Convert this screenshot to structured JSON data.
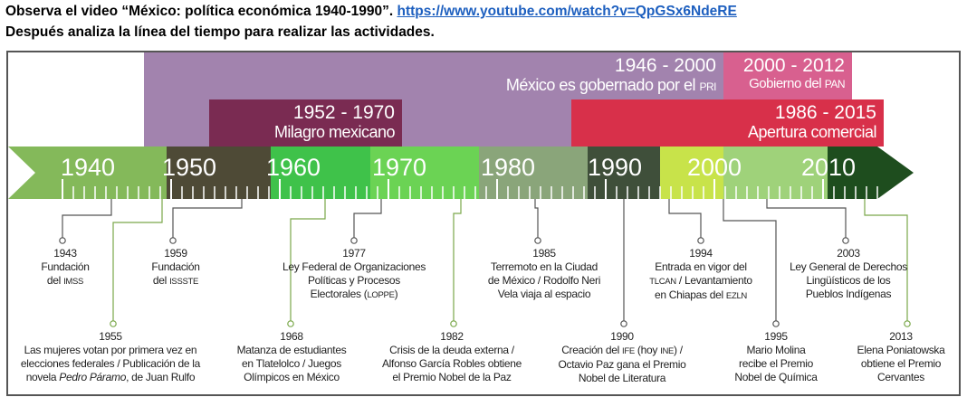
{
  "header": {
    "line1_text": "Observa el video “México: política económica 1940-1990”.",
    "line1_link": "https://www.youtube.com/watch?v=QpGSx6NdeRE",
    "line2": "Después analiza la línea del tiempo para realizar las actividades."
  },
  "periods": {
    "pri": {
      "years": "1946 - 2000",
      "label": "México es gobernado por el ",
      "abbr": "PRI"
    },
    "pan": {
      "years": "2000 - 2012",
      "label": "Gobierno del ",
      "abbr": "PAN"
    },
    "milagro": {
      "years": "1952 - 1970",
      "label": "Milagro mexicano"
    },
    "apertura": {
      "years": "1986 - 2015",
      "label": "Apertura comercial"
    }
  },
  "decades": [
    "1940",
    "1950",
    "1960",
    "1970",
    "1980",
    "1990",
    "2000",
    "2010"
  ],
  "events_top": [
    {
      "year": "1943",
      "l1": "Fundación",
      "l2": "del ",
      "l2abbr": "IMSS"
    },
    {
      "year": "1959",
      "l1": "Fundación",
      "l2": "del ",
      "l2abbr": "ISSSTE"
    },
    {
      "year": "1977",
      "l1": "Ley Federal de Organizaciones",
      "l2": "Políticas y Procesos",
      "l3": "Electorales (",
      "l3abbr": "LOPPE",
      "l3end": ")"
    },
    {
      "year": "1985",
      "l1": "Terremoto en la Ciudad",
      "l2": "de México / Rodolfo Neri",
      "l3": "Vela viaja al espacio"
    },
    {
      "year": "1994",
      "l1": "Entrada en vigor del",
      "l2abbr": "TLCAN",
      "l2": " / Levantamiento",
      "l3": "en Chiapas del ",
      "l3abbr": "EZLN"
    },
    {
      "year": "2003",
      "l1": "Ley General de Derechos",
      "l2": "Lingüísticos de los",
      "l3": "Pueblos Indígenas"
    }
  ],
  "events_bottom": [
    {
      "year": "1955",
      "l1": "Las mujeres votan por primera vez en",
      "l2": "elecciones federales / Publicación de la",
      "l3": "novela ",
      "l3i": "Pedro Páramo",
      "l3end": ", de Juan Rulfo"
    },
    {
      "year": "1968",
      "l1": "Matanza de estudiantes",
      "l2": "en Tlatelolco / Juegos",
      "l3": "Olímpicos en México"
    },
    {
      "year": "1982",
      "l1": "Crisis de la deuda externa /",
      "l2": "Alfonso García Robles obtiene",
      "l3": "el Premio Nobel de la Paz"
    },
    {
      "year": "1990",
      "l1": "Creación del ",
      "l1abbr": "IFE",
      "l1b": " (hoy ",
      "l1abbr2": "INE",
      "l1end": ") /",
      "l2": "Octavio Paz gana el Premio",
      "l3": "Nobel de Literatura"
    },
    {
      "year": "1995",
      "l1": "Mario Molina",
      "l2": "recibe el Premio",
      "l3": "Nobel de Química"
    },
    {
      "year": "2013",
      "l1": "Elena Poniatowska",
      "l2": "obtiene el Premio",
      "l3": "Cervantes"
    }
  ],
  "colors": {
    "pri": "#a283ae",
    "pan": "#d8608f",
    "milagro": "#7a2b52",
    "apertura": "#d8304a",
    "arrow_segments": [
      "#84b95a",
      "#4e4a36",
      "#3fc24a",
      "#6bd354",
      "#8aa57a",
      "#3f4f3a",
      "#c8e34a",
      "#9fd27a",
      "#1e4d1e"
    ]
  }
}
